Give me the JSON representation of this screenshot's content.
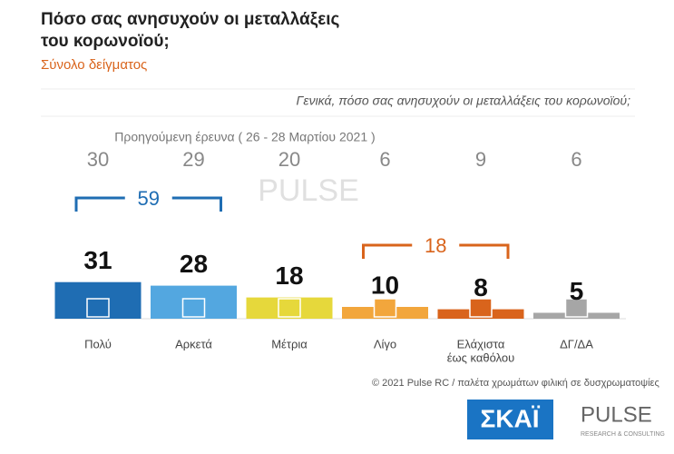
{
  "chart_data": {
    "type": "bar",
    "title": [
      "Πόσο σας ανησυχούν οι μεταλλάξεις",
      "του κορωνοϊού;"
    ],
    "subtitle": "Σύνολο δείγματος",
    "question": "Γενικά, πόσο σας ανησυχούν οι μεταλλάξεις του κορωνοϊού;",
    "previous_label": "Προηγούμενη έρευνα  ( 26 - 28 Μαρτίου 2021 )",
    "previous_values": [
      30,
      29,
      20,
      6,
      9,
      6
    ],
    "categories": [
      [
        "Πολύ"
      ],
      [
        "Αρκετά"
      ],
      [
        "Μέτρια"
      ],
      [
        "Λίγο"
      ],
      [
        "Ελάχιστα",
        "έως καθόλου"
      ],
      [
        "ΔΓ/ΔΑ"
      ]
    ],
    "values": [
      31,
      28,
      18,
      10,
      8,
      5
    ],
    "colors": [
      "#1f6db3",
      "#53a7e0",
      "#e6d83b",
      "#f2a63c",
      "#d9641c",
      "#a6a6a6"
    ],
    "groups": [
      {
        "value": 59,
        "members": [
          0,
          1
        ],
        "color": "#1f6db3"
      },
      {
        "value": 18,
        "members": [
          3,
          4
        ],
        "color": "#d9641c"
      }
    ],
    "footer": "© 2021 Pulse RC  /  παλέτα χρωμάτων φιλική σε δυσχρωματοψίες",
    "logo_left": "ΣΚΑΪ",
    "logo_right": "PULSE",
    "logo_right_sub": "RESEARCH & CONSULTING"
  }
}
